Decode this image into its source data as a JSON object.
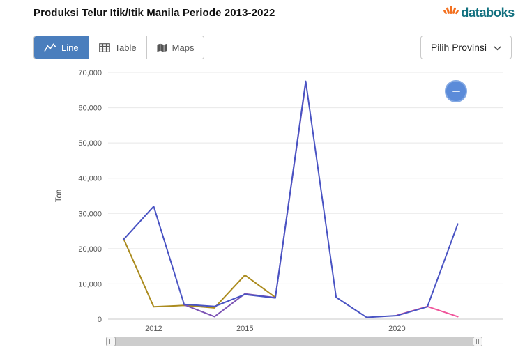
{
  "header": {
    "title": "Produksi Telur Itik/Itik Manila Periode 2013-2022",
    "logo_text": "databoks"
  },
  "toolbar": {
    "tabs": [
      {
        "label": "Line",
        "active": true
      },
      {
        "label": "Table",
        "active": false
      },
      {
        "label": "Maps",
        "active": false
      }
    ],
    "province_selector_label": "Pilih Provinsi"
  },
  "colors": {
    "active_tab": "#4a7ebd",
    "logo_text": "#11707f",
    "logo_icon": "#f3701f",
    "fab_button": "#5b8bd9"
  },
  "chart_data": {
    "type": "line",
    "title": "",
    "xlabel": "",
    "ylabel": "Ton",
    "xlim": [
      2010.5,
      2023.5
    ],
    "ylim": [
      0,
      70000
    ],
    "ytick_step": 10000,
    "xticks": [
      2012,
      2015,
      2020
    ],
    "grid": true,
    "legend_position": "none",
    "series": [
      {
        "name": "olive",
        "color": "#ab8b1e",
        "x": [
          2011,
          2012,
          2013,
          2014,
          2015,
          2016
        ],
        "y": [
          23000,
          3500,
          3900,
          3200,
          12500,
          6200
        ]
      },
      {
        "name": "purple",
        "color": "#7d55b5",
        "x": [
          2013,
          2014,
          2015,
          2016,
          2017
        ],
        "y": [
          4100,
          700,
          7200,
          6100,
          67000
        ]
      },
      {
        "name": "pink",
        "color": "#f0559b",
        "x": [
          2020,
          2021,
          2022
        ],
        "y": [
          1100,
          3600,
          700
        ]
      },
      {
        "name": "blue",
        "color": "#4953c3",
        "x": [
          2011,
          2012,
          2013,
          2014,
          2015,
          2016,
          2017,
          2018,
          2019,
          2020,
          2021,
          2022
        ],
        "y": [
          22500,
          32000,
          4200,
          3600,
          7000,
          6000,
          67500,
          6200,
          500,
          1000,
          3500,
          27000
        ]
      }
    ]
  }
}
